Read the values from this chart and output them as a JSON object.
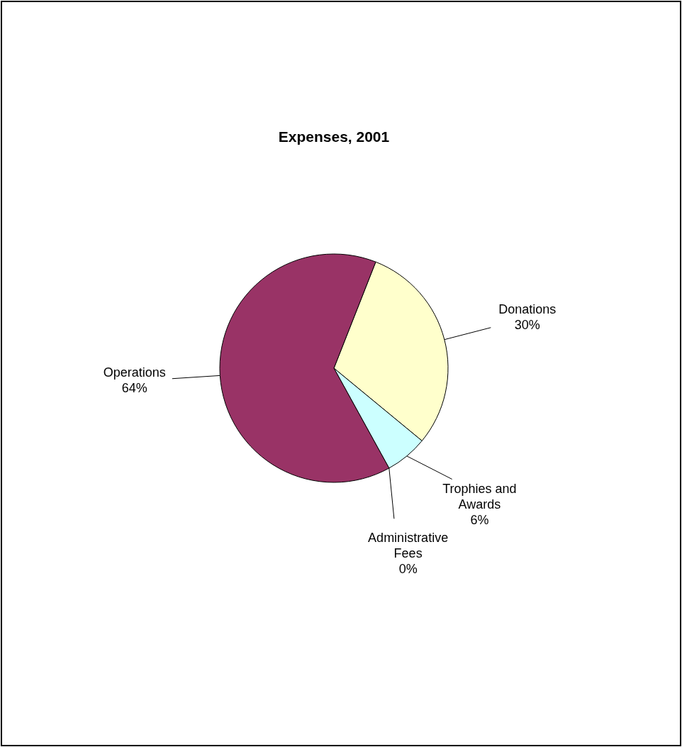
{
  "chart_data": {
    "type": "pie",
    "title": "Expenses, 2001",
    "categories": [
      "Donations",
      "Trophies and Awards",
      "Administrative Fees",
      "Operations"
    ],
    "values": [
      30,
      6,
      0,
      64
    ],
    "colors": [
      "#ffffcc",
      "#ccffff",
      "#660066",
      "#993366"
    ],
    "value_labels": [
      "30%",
      "6%",
      "0%",
      "64%"
    ],
    "legend": false
  }
}
